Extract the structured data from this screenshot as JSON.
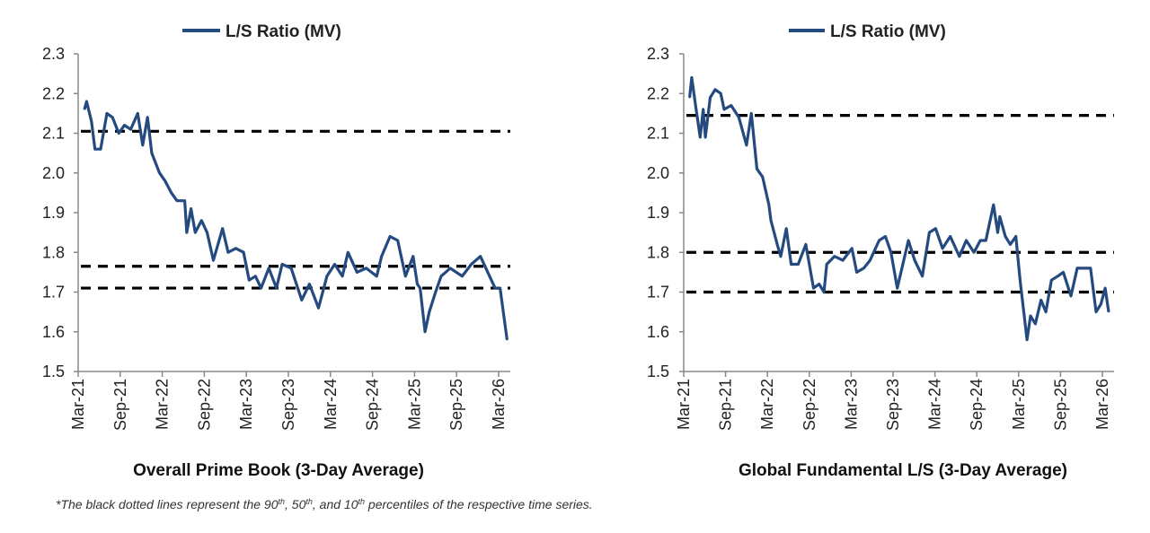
{
  "footnote": {
    "prefix": "*The black dotted lines represent the 90",
    "sup1": "th",
    "mid1": ", 50",
    "sup2": "th",
    "mid2": ", and 10",
    "sup3": "th",
    "suffix": " percentiles of the respective time series."
  },
  "colors": {
    "series": "#254a7f",
    "percentile": "#000000",
    "axis": "#888888"
  },
  "chart_data": [
    {
      "type": "line",
      "title": "Overall Prime Book (3-Day Average)",
      "legend": "L/S Ratio (MV)",
      "legend_position": "top-center",
      "ylim": [
        1.5,
        2.3
      ],
      "yticks": [
        "1.5",
        "1.6",
        "1.7",
        "1.8",
        "1.9",
        "2.0",
        "2.1",
        "2.2",
        "2.3"
      ],
      "xticks": [
        "Mar-21",
        "Sep-21",
        "Mar-22",
        "Sep-22",
        "Mar-23",
        "Sep-23",
        "Mar-24",
        "Sep-24",
        "Mar-25",
        "Sep-25",
        "Mar-26"
      ],
      "x_unit": "months since Mar-21",
      "percentile_lines": [
        2.105,
        1.765,
        1.71
      ],
      "series": [
        {
          "name": "L/S Ratio (MV)",
          "points": [
            [
              0.9,
              2.16
            ],
            [
              1.2,
              2.18
            ],
            [
              1.9,
              2.13
            ],
            [
              2.4,
              2.06
            ],
            [
              3.2,
              2.06
            ],
            [
              4.1,
              2.15
            ],
            [
              4.9,
              2.14
            ],
            [
              5.8,
              2.1
            ],
            [
              6.6,
              2.12
            ],
            [
              7.5,
              2.11
            ],
            [
              8.5,
              2.15
            ],
            [
              9.2,
              2.07
            ],
            [
              9.9,
              2.14
            ],
            [
              10.5,
              2.05
            ],
            [
              11.6,
              2.0
            ],
            [
              12.4,
              1.98
            ],
            [
              13.3,
              1.95
            ],
            [
              14.1,
              1.93
            ],
            [
              15.2,
              1.93
            ],
            [
              15.5,
              1.85
            ],
            [
              16.1,
              1.91
            ],
            [
              16.7,
              1.85
            ],
            [
              17.6,
              1.88
            ],
            [
              18.4,
              1.85
            ],
            [
              19.3,
              1.78
            ],
            [
              20.6,
              1.86
            ],
            [
              21.4,
              1.8
            ],
            [
              22.5,
              1.81
            ],
            [
              23.6,
              1.8
            ],
            [
              24.4,
              1.73
            ],
            [
              25.3,
              1.74
            ],
            [
              26.1,
              1.71
            ],
            [
              27.2,
              1.76
            ],
            [
              28.3,
              1.71
            ],
            [
              29.1,
              1.77
            ],
            [
              30.4,
              1.76
            ],
            [
              31.9,
              1.68
            ],
            [
              33.0,
              1.72
            ],
            [
              34.3,
              1.66
            ],
            [
              35.5,
              1.74
            ],
            [
              36.6,
              1.77
            ],
            [
              37.7,
              1.74
            ],
            [
              38.5,
              1.8
            ],
            [
              39.8,
              1.75
            ],
            [
              41.1,
              1.76
            ],
            [
              42.6,
              1.74
            ],
            [
              43.3,
              1.79
            ],
            [
              44.5,
              1.84
            ],
            [
              45.6,
              1.83
            ],
            [
              46.7,
              1.74
            ],
            [
              47.8,
              1.79
            ],
            [
              48.4,
              1.72
            ],
            [
              48.8,
              1.71
            ],
            [
              49.5,
              1.6
            ],
            [
              50.1,
              1.65
            ],
            [
              51.0,
              1.7
            ],
            [
              51.8,
              1.74
            ],
            [
              53.1,
              1.76
            ],
            [
              54.8,
              1.74
            ],
            [
              56.1,
              1.77
            ],
            [
              57.4,
              1.79
            ],
            [
              58.7,
              1.74
            ],
            [
              59.5,
              1.71
            ],
            [
              60.2,
              1.71
            ],
            [
              61.2,
              1.58
            ]
          ]
        }
      ]
    },
    {
      "type": "line",
      "title": "Global Fundamental L/S (3-Day Average)",
      "legend": "L/S Ratio (MV)",
      "legend_position": "top-center",
      "ylim": [
        1.5,
        2.3
      ],
      "yticks": [
        "1.5",
        "1.6",
        "1.7",
        "1.8",
        "1.9",
        "2.0",
        "2.1",
        "2.2",
        "2.3"
      ],
      "xticks": [
        "Mar-21",
        "Sep-21",
        "Mar-22",
        "Sep-22",
        "Mar-23",
        "Sep-23",
        "Mar-24",
        "Sep-24",
        "Mar-25",
        "Sep-25",
        "Mar-26"
      ],
      "x_unit": "months since Mar-21",
      "percentile_lines": [
        2.145,
        1.8,
        1.7
      ],
      "series": [
        {
          "name": "L/S Ratio (MV)",
          "points": [
            [
              0.85,
              2.19
            ],
            [
              1.15,
              2.24
            ],
            [
              1.7,
              2.17
            ],
            [
              2.35,
              2.09
            ],
            [
              2.8,
              2.16
            ],
            [
              3.1,
              2.09
            ],
            [
              3.8,
              2.19
            ],
            [
              4.5,
              2.21
            ],
            [
              5.3,
              2.2
            ],
            [
              5.8,
              2.16
            ],
            [
              6.8,
              2.17
            ],
            [
              7.9,
              2.14
            ],
            [
              9.0,
              2.07
            ],
            [
              9.7,
              2.15
            ],
            [
              10.5,
              2.01
            ],
            [
              11.3,
              1.99
            ],
            [
              12.2,
              1.92
            ],
            [
              12.5,
              1.88
            ],
            [
              13.4,
              1.82
            ],
            [
              13.9,
              1.79
            ],
            [
              14.7,
              1.86
            ],
            [
              15.4,
              1.77
            ],
            [
              16.4,
              1.77
            ],
            [
              17.5,
              1.82
            ],
            [
              18.6,
              1.71
            ],
            [
              19.4,
              1.72
            ],
            [
              20.1,
              1.7
            ],
            [
              20.5,
              1.77
            ],
            [
              21.6,
              1.79
            ],
            [
              22.8,
              1.78
            ],
            [
              24.1,
              1.81
            ],
            [
              24.8,
              1.75
            ],
            [
              25.8,
              1.76
            ],
            [
              26.7,
              1.78
            ],
            [
              28.0,
              1.83
            ],
            [
              28.9,
              1.84
            ],
            [
              29.7,
              1.8
            ],
            [
              30.6,
              1.71
            ],
            [
              31.4,
              1.77
            ],
            [
              32.2,
              1.83
            ],
            [
              33.1,
              1.78
            ],
            [
              34.2,
              1.74
            ],
            [
              35.2,
              1.85
            ],
            [
              36.1,
              1.86
            ],
            [
              37.1,
              1.81
            ],
            [
              38.2,
              1.84
            ],
            [
              39.5,
              1.79
            ],
            [
              40.5,
              1.83
            ],
            [
              41.6,
              1.8
            ],
            [
              42.5,
              1.83
            ],
            [
              43.3,
              1.83
            ],
            [
              44.4,
              1.92
            ],
            [
              45.0,
              1.85
            ],
            [
              45.3,
              1.89
            ],
            [
              46.1,
              1.84
            ],
            [
              46.8,
              1.82
            ],
            [
              47.6,
              1.84
            ],
            [
              48.2,
              1.73
            ],
            [
              49.2,
              1.58
            ],
            [
              49.7,
              1.64
            ],
            [
              50.4,
              1.62
            ],
            [
              51.2,
              1.68
            ],
            [
              51.9,
              1.65
            ],
            [
              52.7,
              1.73
            ],
            [
              53.6,
              1.74
            ],
            [
              54.4,
              1.75
            ],
            [
              55.5,
              1.69
            ],
            [
              56.4,
              1.76
            ],
            [
              57.4,
              1.76
            ],
            [
              58.3,
              1.76
            ],
            [
              59.1,
              1.65
            ],
            [
              59.8,
              1.67
            ],
            [
              60.4,
              1.71
            ],
            [
              60.9,
              1.65
            ]
          ]
        }
      ]
    }
  ]
}
